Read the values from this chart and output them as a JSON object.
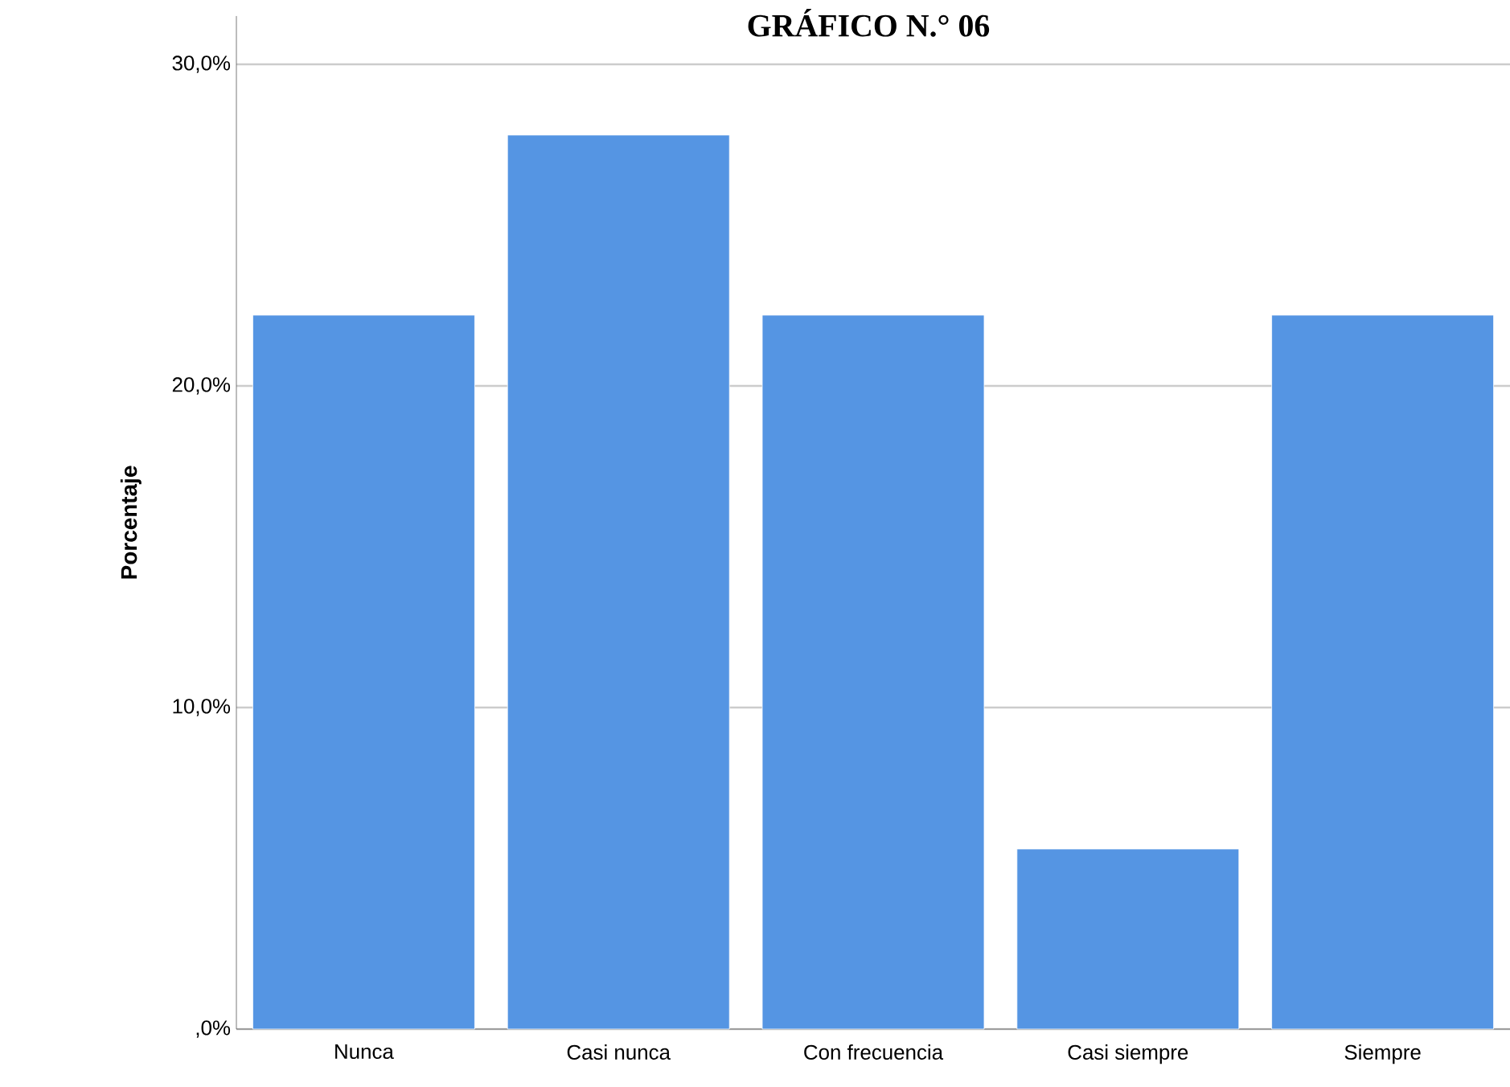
{
  "chart_data": {
    "type": "bar",
    "title": "GRÁFICO N.° 06",
    "ylabel": "Porcentaje",
    "categories": [
      "Nunca",
      "Casi nunca",
      "Con frecuencia",
      "Casi siempre",
      "Siempre"
    ],
    "values": [
      22.2,
      27.8,
      22.2,
      5.6,
      22.2
    ],
    "color": "#5595e3",
    "ylim": [
      0,
      31.5
    ],
    "yticks": [
      {
        "value": 0,
        "label": ",0%"
      },
      {
        "value": 10,
        "label": "10,0%"
      },
      {
        "value": 20,
        "label": "20,0%"
      },
      {
        "value": 30,
        "label": "30,0%"
      }
    ],
    "grid": "y"
  }
}
